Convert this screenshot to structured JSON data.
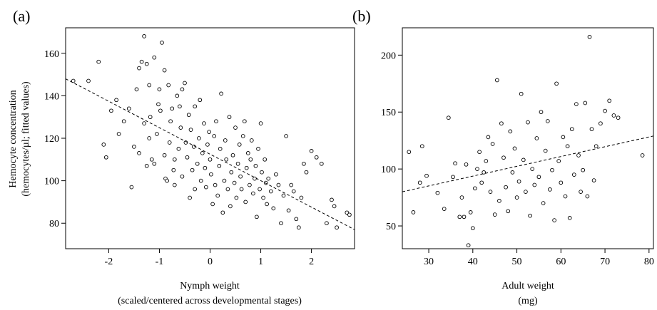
{
  "chart_data": [
    {
      "type": "scatter",
      "panel_label": "(a)",
      "title": "",
      "xlabel": "Nymph weight",
      "xlabel_sub": "(scaled/centered across developmental stages)",
      "ylabel": "Hemocyte concentration",
      "ylabel_sub": "(hemocytes/µl; fitted values)",
      "xlim": [
        -2.85,
        2.85
      ],
      "ylim": [
        68,
        172
      ],
      "xticks": [
        -2,
        -1,
        0,
        1,
        2
      ],
      "xtick_labels": [
        "-2",
        "-1",
        "0",
        "1",
        "2"
      ],
      "yticks": [
        80,
        100,
        120,
        140,
        160
      ],
      "ytick_labels": [
        "80",
        "100",
        "120",
        "140",
        "160"
      ],
      "trendline": {
        "style": "dashed",
        "x": [
          -2.85,
          2.85
        ],
        "y": [
          148,
          77
        ]
      },
      "points": [
        [
          -2.7,
          147
        ],
        [
          -2.4,
          147
        ],
        [
          -2.2,
          156
        ],
        [
          -2.1,
          117
        ],
        [
          -2.05,
          111
        ],
        [
          -1.95,
          133
        ],
        [
          -1.85,
          138
        ],
        [
          -1.8,
          122
        ],
        [
          -1.7,
          128
        ],
        [
          -1.6,
          134
        ],
        [
          -1.55,
          97
        ],
        [
          -1.5,
          116
        ],
        [
          -1.45,
          143
        ],
        [
          -1.4,
          153
        ],
        [
          -1.4,
          113
        ],
        [
          -1.35,
          156
        ],
        [
          -1.3,
          168
        ],
        [
          -1.3,
          127
        ],
        [
          -1.25,
          107
        ],
        [
          -1.25,
          155
        ],
        [
          -1.2,
          145
        ],
        [
          -1.2,
          120
        ],
        [
          -1.18,
          130
        ],
        [
          -1.15,
          110
        ],
        [
          -1.1,
          158
        ],
        [
          -1.1,
          108
        ],
        [
          -1.05,
          122
        ],
        [
          -1.02,
          136
        ],
        [
          -1.0,
          143
        ],
        [
          -0.98,
          133
        ],
        [
          -0.95,
          165
        ],
        [
          -0.9,
          152
        ],
        [
          -0.9,
          112
        ],
        [
          -0.88,
          101
        ],
        [
          -0.85,
          100
        ],
        [
          -0.82,
          145
        ],
        [
          -0.8,
          118
        ],
        [
          -0.78,
          128
        ],
        [
          -0.75,
          134
        ],
        [
          -0.72,
          105
        ],
        [
          -0.7,
          110
        ],
        [
          -0.7,
          98
        ],
        [
          -0.65,
          140
        ],
        [
          -0.62,
          115
        ],
        [
          -0.6,
          135
        ],
        [
          -0.58,
          125
        ],
        [
          -0.55,
          102
        ],
        [
          -0.55,
          143
        ],
        [
          -0.5,
          146
        ],
        [
          -0.48,
          118
        ],
        [
          -0.45,
          111
        ],
        [
          -0.42,
          131
        ],
        [
          -0.4,
          92
        ],
        [
          -0.38,
          124
        ],
        [
          -0.35,
          105
        ],
        [
          -0.32,
          116
        ],
        [
          -0.3,
          135
        ],
        [
          -0.3,
          96
        ],
        [
          -0.25,
          108
        ],
        [
          -0.22,
          120
        ],
        [
          -0.2,
          138
        ],
        [
          -0.18,
          100
        ],
        [
          -0.15,
          113
        ],
        [
          -0.12,
          127
        ],
        [
          -0.1,
          106
        ],
        [
          -0.08,
          97
        ],
        [
          -0.05,
          117
        ],
        [
          -0.02,
          123
        ],
        [
          0.0,
          110
        ],
        [
          0.02,
          103
        ],
        [
          0.05,
          89
        ],
        [
          0.08,
          121
        ],
        [
          0.1,
          98
        ],
        [
          0.12,
          128
        ],
        [
          0.15,
          93
        ],
        [
          0.18,
          107
        ],
        [
          0.2,
          115
        ],
        [
          0.22,
          141
        ],
        [
          0.25,
          85
        ],
        [
          0.28,
          100
        ],
        [
          0.3,
          119
        ],
        [
          0.32,
          110
        ],
        [
          0.35,
          96
        ],
        [
          0.38,
          130
        ],
        [
          0.4,
          88
        ],
        [
          0.42,
          104
        ],
        [
          0.45,
          112
        ],
        [
          0.48,
          99
        ],
        [
          0.5,
          125
        ],
        [
          0.52,
          92
        ],
        [
          0.55,
          108
        ],
        [
          0.58,
          117
        ],
        [
          0.6,
          102
        ],
        [
          0.62,
          96
        ],
        [
          0.65,
          121
        ],
        [
          0.68,
          128
        ],
        [
          0.7,
          90
        ],
        [
          0.72,
          106
        ],
        [
          0.75,
          113
        ],
        [
          0.78,
          98
        ],
        [
          0.8,
          110
        ],
        [
          0.82,
          119
        ],
        [
          0.85,
          94
        ],
        [
          0.88,
          101
        ],
        [
          0.9,
          107
        ],
        [
          0.92,
          83
        ],
        [
          0.95,
          115
        ],
        [
          0.98,
          96
        ],
        [
          1.0,
          127
        ],
        [
          1.02,
          104
        ],
        [
          1.05,
          92
        ],
        [
          1.08,
          110
        ],
        [
          1.1,
          99
        ],
        [
          1.12,
          89
        ],
        [
          1.15,
          101
        ],
        [
          1.2,
          95
        ],
        [
          1.25,
          87
        ],
        [
          1.3,
          103
        ],
        [
          1.35,
          98
        ],
        [
          1.4,
          80
        ],
        [
          1.45,
          93
        ],
        [
          1.5,
          121
        ],
        [
          1.55,
          86
        ],
        [
          1.6,
          98
        ],
        [
          1.65,
          95
        ],
        [
          1.7,
          82
        ],
        [
          1.75,
          78
        ],
        [
          1.8,
          92
        ],
        [
          1.85,
          108
        ],
        [
          1.9,
          104
        ],
        [
          2.0,
          114
        ],
        [
          2.1,
          111
        ],
        [
          2.2,
          108
        ],
        [
          2.3,
          80
        ],
        [
          2.4,
          91
        ],
        [
          2.45,
          88
        ],
        [
          2.5,
          78
        ],
        [
          2.7,
          85
        ],
        [
          2.75,
          84
        ]
      ]
    },
    {
      "type": "scatter",
      "panel_label": "(b)",
      "title": "",
      "xlabel": "Adult weight",
      "xlabel_sub": "(mg)",
      "ylabel": "",
      "xlim": [
        24,
        81
      ],
      "ylim": [
        30,
        224
      ],
      "xticks": [
        30,
        40,
        50,
        60,
        70,
        80
      ],
      "xtick_labels": [
        "30",
        "40",
        "50",
        "60",
        "70",
        "80"
      ],
      "yticks": [
        50,
        100,
        150,
        200
      ],
      "ytick_labels": [
        "50",
        "100",
        "150",
        "200"
      ],
      "trendline": {
        "style": "dashed",
        "x": [
          24,
          81
        ],
        "y": [
          80,
          129
        ]
      },
      "points": [
        [
          25.5,
          115
        ],
        [
          26.5,
          62
        ],
        [
          28,
          88
        ],
        [
          28.5,
          120
        ],
        [
          29.5,
          94
        ],
        [
          32,
          79
        ],
        [
          33.5,
          65
        ],
        [
          34.5,
          145
        ],
        [
          35.5,
          93
        ],
        [
          36,
          105
        ],
        [
          37,
          58
        ],
        [
          37.5,
          75
        ],
        [
          38,
          58
        ],
        [
          38.5,
          104
        ],
        [
          39,
          33
        ],
        [
          39.5,
          62
        ],
        [
          40,
          48
        ],
        [
          40.5,
          83
        ],
        [
          41,
          100
        ],
        [
          41.5,
          115
        ],
        [
          42,
          88
        ],
        [
          42.5,
          97
        ],
        [
          43,
          107
        ],
        [
          43.5,
          128
        ],
        [
          44,
          80
        ],
        [
          44.5,
          122
        ],
        [
          45,
          60
        ],
        [
          45.5,
          178
        ],
        [
          46,
          72
        ],
        [
          46.5,
          140
        ],
        [
          47,
          110
        ],
        [
          47.5,
          84
        ],
        [
          48,
          63
        ],
        [
          48.5,
          133
        ],
        [
          49,
          97
        ],
        [
          49.5,
          118
        ],
        [
          50,
          75
        ],
        [
          50.5,
          89
        ],
        [
          51,
          166
        ],
        [
          51.5,
          108
        ],
        [
          52,
          80
        ],
        [
          52.5,
          141
        ],
        [
          53,
          59
        ],
        [
          53.5,
          100
        ],
        [
          54,
          86
        ],
        [
          54.5,
          127
        ],
        [
          55,
          93
        ],
        [
          55.5,
          150
        ],
        [
          56,
          70
        ],
        [
          56.5,
          116
        ],
        [
          57,
          142
        ],
        [
          57.5,
          82
        ],
        [
          58,
          99
        ],
        [
          58.5,
          55
        ],
        [
          59,
          175
        ],
        [
          59.5,
          107
        ],
        [
          60,
          88
        ],
        [
          60.5,
          128
        ],
        [
          61,
          76
        ],
        [
          61.5,
          120
        ],
        [
          62,
          57
        ],
        [
          62.5,
          135
        ],
        [
          63,
          95
        ],
        [
          63.5,
          157
        ],
        [
          64,
          112
        ],
        [
          64.5,
          80
        ],
        [
          65,
          99
        ],
        [
          65.5,
          158
        ],
        [
          66,
          76
        ],
        [
          66.5,
          216
        ],
        [
          67,
          135
        ],
        [
          67.5,
          90
        ],
        [
          68,
          120
        ],
        [
          69,
          140
        ],
        [
          70,
          151
        ],
        [
          71,
          160
        ],
        [
          72,
          147
        ],
        [
          73,
          145
        ],
        [
          78.5,
          112
        ]
      ]
    }
  ]
}
